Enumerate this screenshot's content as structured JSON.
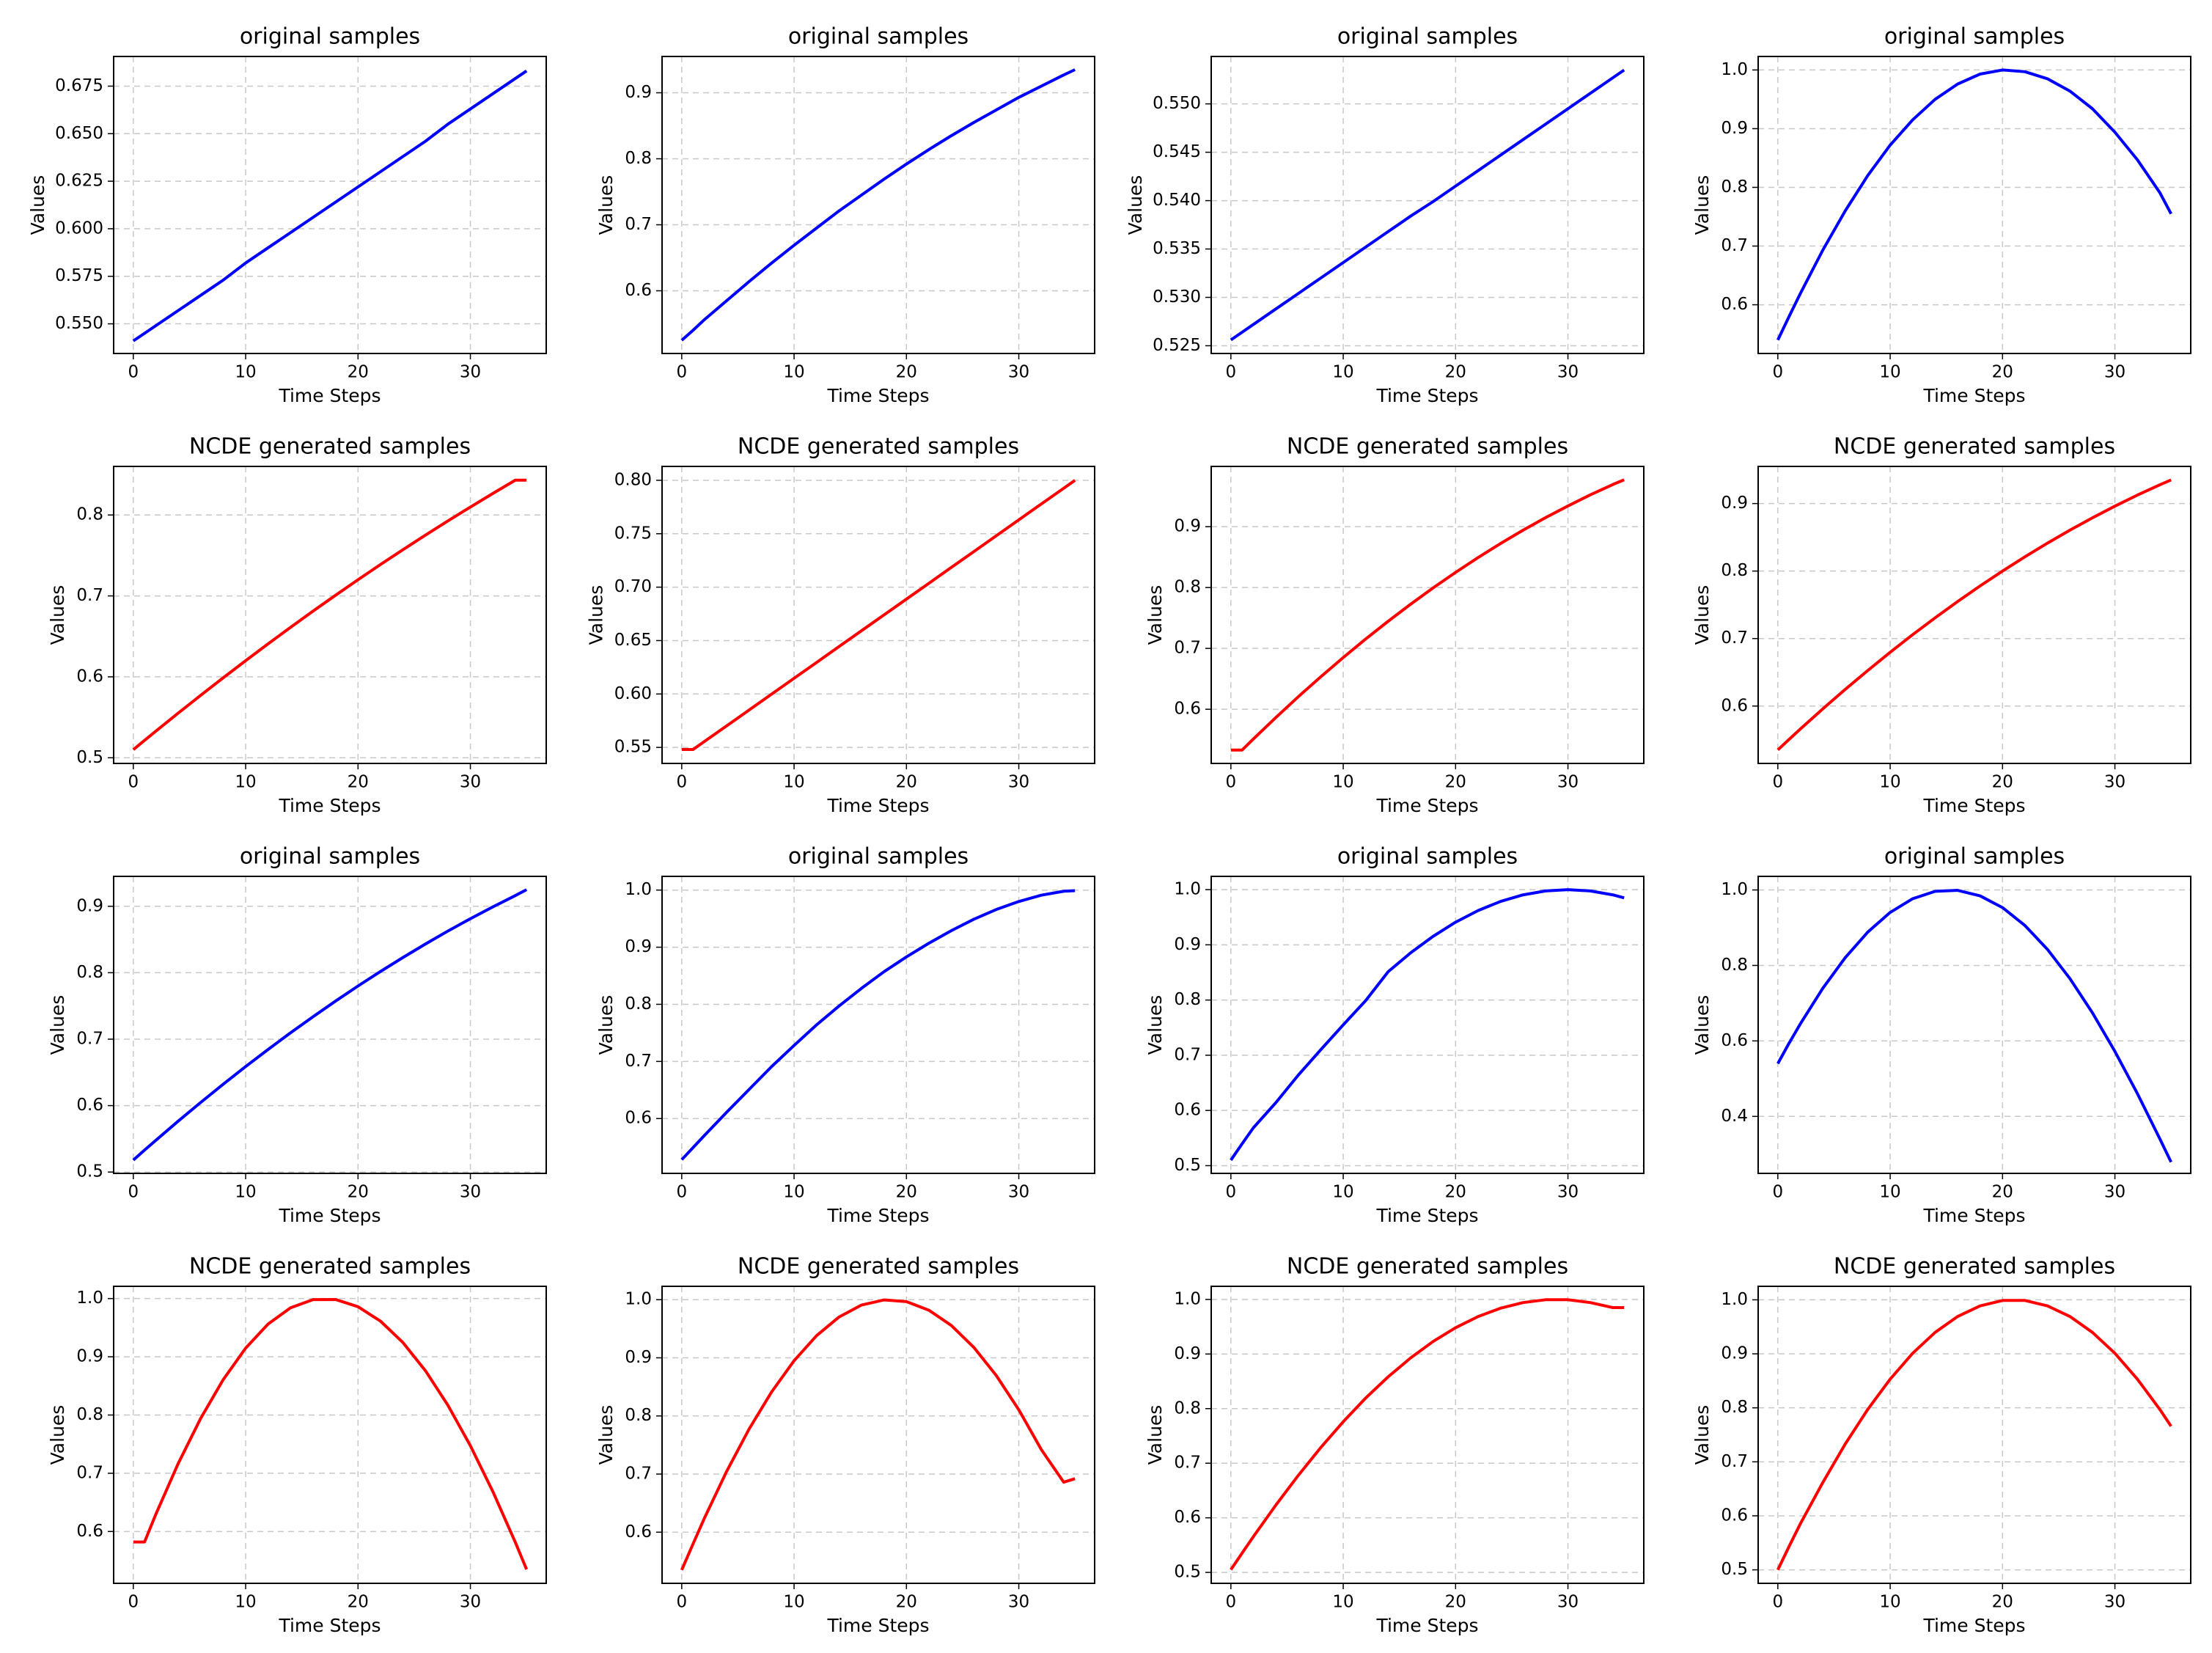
{
  "chart_data": [
    {
      "type": "line",
      "title": "original samples",
      "xlabel": "Time Steps",
      "ylabel": "Values",
      "color": "#0000ff",
      "grid": true,
      "x": [
        0,
        1,
        2,
        4,
        6,
        8,
        10,
        12,
        14,
        16,
        18,
        20,
        22,
        24,
        26,
        28,
        30,
        32,
        34,
        35
      ],
      "values": [
        0.541,
        0.545,
        0.549,
        0.557,
        0.565,
        0.573,
        0.582,
        0.59,
        0.598,
        0.606,
        0.614,
        0.622,
        0.63,
        0.638,
        0.646,
        0.655,
        0.663,
        0.671,
        0.679,
        0.683
      ],
      "xlim": [
        -1.75,
        36.75
      ],
      "xticks": [
        0,
        10,
        20,
        30
      ],
      "ylim": [
        0.5344,
        0.6906
      ],
      "yticks": [
        {
          "value": 0.55,
          "label": "0.550"
        },
        0.575,
        {
          "value": 0.6,
          "label": "0.600"
        },
        0.625,
        {
          "value": 0.65,
          "label": "0.650"
        },
        0.675
      ]
    },
    {
      "type": "line",
      "title": "original samples",
      "xlabel": "Time Steps",
      "ylabel": "Values",
      "color": "#0000ff",
      "grid": true,
      "x": [
        0,
        1,
        2,
        4,
        6,
        8,
        10,
        12,
        14,
        16,
        18,
        20,
        22,
        24,
        26,
        28,
        30,
        32,
        34,
        35
      ],
      "values": [
        0.525,
        0.54,
        0.556,
        0.585,
        0.614,
        0.642,
        0.669,
        0.695,
        0.721,
        0.745,
        0.769,
        0.792,
        0.814,
        0.835,
        0.855,
        0.874,
        0.893,
        0.91,
        0.927,
        0.935
      ],
      "xlim": [
        -1.75,
        36.75
      ],
      "xticks": [
        0,
        10,
        20,
        30
      ],
      "ylim": [
        0.505,
        0.955
      ],
      "yticks": [
        0.6,
        0.7,
        0.8,
        0.9
      ]
    },
    {
      "type": "line",
      "title": "original samples",
      "xlabel": "Time Steps",
      "ylabel": "Values",
      "color": "#0000ff",
      "grid": true,
      "x": [
        0,
        1,
        2,
        4,
        6,
        8,
        10,
        12,
        14,
        16,
        18,
        20,
        22,
        24,
        26,
        28,
        30,
        32,
        34,
        35
      ],
      "values": [
        0.5256,
        0.5264,
        0.5272,
        0.5288,
        0.5304,
        0.532,
        0.5336,
        0.5352,
        0.5368,
        0.5384,
        0.5399,
        0.5415,
        0.5431,
        0.5447,
        0.5463,
        0.5479,
        0.5495,
        0.5511,
        0.5527,
        0.5535
      ],
      "xlim": [
        -1.75,
        36.75
      ],
      "xticks": [
        0,
        10,
        20,
        30
      ],
      "ylim": [
        0.5242,
        0.5549
      ],
      "yticks": [
        0.525,
        {
          "value": 0.53,
          "label": "0.530"
        },
        0.535,
        {
          "value": 0.54,
          "label": "0.540"
        },
        0.545,
        {
          "value": 0.55,
          "label": "0.550"
        }
      ]
    },
    {
      "type": "line",
      "title": "original samples",
      "xlabel": "Time Steps",
      "ylabel": "Values",
      "color": "#0000ff",
      "grid": true,
      "x": [
        0,
        1,
        2,
        4,
        6,
        8,
        10,
        12,
        14,
        16,
        18,
        20,
        22,
        24,
        26,
        28,
        30,
        32,
        34,
        35
      ],
      "values": [
        0.54,
        0.58,
        0.619,
        0.693,
        0.76,
        0.82,
        0.872,
        0.915,
        0.95,
        0.976,
        0.993,
        1.0,
        0.997,
        0.985,
        0.964,
        0.934,
        0.894,
        0.847,
        0.791,
        0.755
      ],
      "xlim": [
        -1.75,
        36.75
      ],
      "xticks": [
        0,
        10,
        20,
        30
      ],
      "ylim": [
        0.517,
        1.023
      ],
      "yticks": [
        0.6,
        0.7,
        0.8,
        0.9,
        {
          "value": 1,
          "label": "1.0"
        }
      ]
    },
    {
      "type": "line",
      "title": "NCDE generated samples",
      "xlabel": "Time Steps",
      "ylabel": "Values",
      "color": "#ff0000",
      "grid": true,
      "x": [
        0,
        1,
        2,
        4,
        6,
        8,
        10,
        12,
        14,
        16,
        18,
        20,
        22,
        24,
        26,
        28,
        30,
        32,
        34,
        35
      ],
      "values": [
        0.51,
        0.5215,
        0.5328,
        0.5552,
        0.5772,
        0.5988,
        0.62,
        0.6408,
        0.6612,
        0.6812,
        0.7008,
        0.72,
        0.7388,
        0.7571,
        0.7751,
        0.7927,
        0.8098,
        0.8266,
        0.843,
        0.843
      ],
      "xlim": [
        -1.75,
        36.75
      ],
      "xticks": [
        0,
        10,
        20,
        30
      ],
      "ylim": [
        0.493,
        0.86
      ],
      "yticks": [
        0.5,
        0.6,
        0.7,
        0.8
      ]
    },
    {
      "type": "line",
      "title": "NCDE generated samples",
      "xlabel": "Time Steps",
      "ylabel": "Values",
      "color": "#ff0000",
      "grid": true,
      "x": [
        0,
        1,
        2,
        4,
        6,
        8,
        10,
        12,
        14,
        16,
        18,
        20,
        22,
        24,
        26,
        28,
        30,
        32,
        34,
        35
      ],
      "values": [
        0.548,
        0.548,
        0.5554,
        0.5702,
        0.585,
        0.5999,
        0.6147,
        0.6295,
        0.6444,
        0.6592,
        0.674,
        0.6888,
        0.7036,
        0.7185,
        0.7333,
        0.7481,
        0.763,
        0.7778,
        0.7926,
        0.8
      ],
      "xlim": [
        -1.75,
        36.75
      ],
      "xticks": [
        0,
        10,
        20,
        30
      ],
      "ylim": [
        0.535,
        0.813
      ],
      "yticks": [
        0.55,
        {
          "value": 0.6,
          "label": "0.60"
        },
        0.65,
        {
          "value": 0.7,
          "label": "0.70"
        },
        0.75,
        {
          "value": 0.8,
          "label": "0.80"
        }
      ]
    },
    {
      "type": "line",
      "title": "NCDE generated samples",
      "xlabel": "Time Steps",
      "ylabel": "Values",
      "color": "#ff0000",
      "grid": true,
      "x": [
        0,
        1,
        2,
        4,
        6,
        8,
        10,
        12,
        14,
        16,
        18,
        20,
        22,
        24,
        26,
        28,
        30,
        32,
        34,
        35
      ],
      "values": [
        0.533,
        0.533,
        0.5511,
        0.5864,
        0.6206,
        0.6534,
        0.685,
        0.7155,
        0.7446,
        0.7726,
        0.7994,
        0.8249,
        0.8492,
        0.8723,
        0.8942,
        0.9148,
        0.934,
        0.9524,
        0.9693,
        0.977
      ],
      "xlim": [
        -1.75,
        36.75
      ],
      "xticks": [
        0,
        10,
        20,
        30
      ],
      "ylim": [
        0.511,
        0.999
      ],
      "yticks": [
        0.6,
        0.7,
        0.8,
        0.9
      ]
    },
    {
      "type": "line",
      "title": "NCDE generated samples",
      "xlabel": "Time Steps",
      "ylabel": "Values",
      "color": "#ff0000",
      "grid": true,
      "x": [
        0,
        1,
        2,
        4,
        6,
        8,
        10,
        12,
        14,
        16,
        18,
        20,
        22,
        24,
        26,
        28,
        30,
        32,
        34,
        35
      ],
      "values": [
        0.535,
        0.5506,
        0.5659,
        0.5958,
        0.6247,
        0.6526,
        0.6797,
        0.7057,
        0.7307,
        0.7548,
        0.7779,
        0.8,
        0.8212,
        0.8414,
        0.8606,
        0.8788,
        0.8961,
        0.9125,
        0.9278,
        0.935
      ],
      "xlim": [
        -1.75,
        36.75
      ],
      "xticks": [
        0,
        10,
        20,
        30
      ],
      "ylim": [
        0.515,
        0.955
      ],
      "yticks": [
        0.6,
        0.7,
        0.8,
        0.9
      ]
    },
    {
      "type": "line",
      "title": "original samples",
      "xlabel": "Time Steps",
      "ylabel": "Values",
      "color": "#0000ff",
      "grid": true,
      "x": [
        0,
        1,
        2,
        4,
        6,
        8,
        10,
        12,
        14,
        16,
        18,
        20,
        22,
        24,
        26,
        28,
        30,
        32,
        34,
        35
      ],
      "values": [
        0.518,
        0.533,
        0.5477,
        0.5767,
        0.6048,
        0.6322,
        0.6588,
        0.6845,
        0.7096,
        0.7338,
        0.7573,
        0.78,
        0.8019,
        0.8229,
        0.8432,
        0.8627,
        0.8813,
        0.8991,
        0.9161,
        0.925
      ],
      "xlim": [
        -1.75,
        36.75
      ],
      "xticks": [
        0,
        10,
        20,
        30
      ],
      "ylim": [
        0.498,
        0.945
      ],
      "yticks": [
        0.5,
        0.6,
        0.7,
        0.8,
        0.9
      ]
    },
    {
      "type": "line",
      "title": "original samples",
      "xlabel": "Time Steps",
      "ylabel": "Values",
      "color": "#0000ff",
      "grid": true,
      "x": [
        0,
        1,
        2,
        4,
        6,
        8,
        10,
        12,
        14,
        16,
        18,
        20,
        22,
        24,
        26,
        28,
        30,
        32,
        34,
        35
      ],
      "values": [
        0.528,
        0.549,
        0.57,
        0.611,
        0.651,
        0.691,
        0.728,
        0.764,
        0.797,
        0.828,
        0.857,
        0.883,
        0.907,
        0.929,
        0.949,
        0.966,
        0.98,
        0.991,
        0.998,
        0.999
      ],
      "xlim": [
        -1.75,
        36.75
      ],
      "xticks": [
        0,
        10,
        20,
        30
      ],
      "ylim": [
        0.504,
        1.024
      ],
      "yticks": [
        0.6,
        0.7,
        0.8,
        0.9,
        {
          "value": 1,
          "label": "1.0"
        }
      ]
    },
    {
      "type": "line",
      "title": "original samples",
      "xlabel": "Time Steps",
      "ylabel": "Values",
      "color": "#0000ff",
      "grid": true,
      "x": [
        0,
        1,
        2,
        4,
        6,
        8,
        10,
        12,
        14,
        16,
        18,
        20,
        22,
        24,
        26,
        28,
        30,
        32,
        34,
        35
      ],
      "values": [
        0.51,
        0.5396,
        0.5685,
        0.614,
        0.664,
        0.71,
        0.755,
        0.799,
        0.8513,
        0.8855,
        0.9154,
        0.941,
        0.9621,
        0.9786,
        0.9905,
        0.9976,
        1.0,
        0.9976,
        0.9905,
        0.9851
      ],
      "xlim": [
        -1.75,
        36.75
      ],
      "xticks": [
        0,
        10,
        20,
        30
      ],
      "ylim": [
        0.486,
        1.024
      ],
      "yticks": [
        0.5,
        0.6,
        0.7,
        0.8,
        0.9,
        {
          "value": 1,
          "label": "1.0"
        }
      ]
    },
    {
      "type": "line",
      "title": "original samples",
      "xlabel": "Time Steps",
      "ylabel": "Values",
      "color": "#0000ff",
      "grid": true,
      "x": [
        0,
        1,
        2,
        4,
        6,
        8,
        10,
        12,
        14,
        16,
        18,
        20,
        22,
        24,
        26,
        28,
        30,
        32,
        34,
        35
      ],
      "values": [
        0.54,
        0.5939,
        0.645,
        0.7392,
        0.8207,
        0.8882,
        0.9405,
        0.9768,
        0.9964,
        0.999,
        0.9844,
        0.9532,
        0.9056,
        0.8425,
        0.765,
        0.6745,
        0.5722,
        0.4606,
        0.3405,
        0.279
      ],
      "xlim": [
        -1.75,
        36.75
      ],
      "xticks": [
        0,
        10,
        20,
        30
      ],
      "ylim": [
        0.249,
        1.036
      ],
      "yticks": [
        0.4,
        0.6,
        0.8,
        {
          "value": 1,
          "label": "1.0"
        }
      ]
    },
    {
      "type": "line",
      "title": "NCDE generated samples",
      "xlabel": "Time Steps",
      "ylabel": "Values",
      "color": "#ff0000",
      "grid": true,
      "x": [
        0,
        1,
        2,
        4,
        6,
        8,
        10,
        12,
        14,
        16,
        18,
        20,
        22,
        24,
        26,
        28,
        30,
        32,
        34,
        35
      ],
      "values": [
        0.582,
        0.582,
        0.6294,
        0.7169,
        0.7944,
        0.8607,
        0.9149,
        0.9563,
        0.9842,
        0.9982,
        0.9984,
        0.986,
        0.9612,
        0.9244,
        0.8761,
        0.8168,
        0.7473,
        0.6686,
        0.5815,
        0.535
      ],
      "xlim": [
        -1.75,
        36.75
      ],
      "xticks": [
        0,
        10,
        20,
        30
      ],
      "ylim": [
        0.511,
        1.021
      ],
      "yticks": [
        0.6,
        0.7,
        0.8,
        0.9,
        {
          "value": 1,
          "label": "1.0"
        }
      ]
    },
    {
      "type": "line",
      "title": "NCDE generated samples",
      "xlabel": "Time Steps",
      "ylabel": "Values",
      "color": "#ff0000",
      "grid": true,
      "x": [
        0,
        1,
        2,
        4,
        6,
        8,
        10,
        12,
        14,
        16,
        18,
        20,
        22,
        24,
        26,
        28,
        30,
        32,
        34,
        35
      ],
      "values": [
        0.535,
        0.5795,
        0.6233,
        0.7047,
        0.7776,
        0.8413,
        0.895,
        0.9381,
        0.9702,
        0.9908,
        0.9996,
        0.9967,
        0.9819,
        0.9556,
        0.9179,
        0.8694,
        0.8106,
        0.7423,
        0.686,
        0.692
      ],
      "xlim": [
        -1.75,
        36.75
      ],
      "xticks": [
        0,
        10,
        20,
        30
      ],
      "ylim": [
        0.512,
        1.023
      ],
      "yticks": [
        0.6,
        0.7,
        0.8,
        0.9,
        {
          "value": 1,
          "label": "1.0"
        }
      ]
    },
    {
      "type": "line",
      "title": "NCDE generated samples",
      "xlabel": "Time Steps",
      "ylabel": "Values",
      "color": "#ff0000",
      "grid": true,
      "x": [
        0,
        1,
        2,
        4,
        6,
        8,
        10,
        12,
        14,
        16,
        18,
        20,
        22,
        24,
        26,
        28,
        30,
        32,
        34,
        35
      ],
      "values": [
        0.505,
        0.5354,
        0.5654,
        0.6232,
        0.6777,
        0.7287,
        0.776,
        0.8194,
        0.8583,
        0.8929,
        0.923,
        0.9482,
        0.9686,
        0.9839,
        0.9942,
        0.9994,
        0.9994,
        0.9942,
        0.985,
        0.985
      ],
      "xlim": [
        -1.75,
        36.75
      ],
      "xticks": [
        0,
        10,
        20,
        30
      ],
      "ylim": [
        0.48,
        1.024
      ],
      "yticks": [
        0.5,
        0.6,
        0.7,
        0.8,
        0.9,
        {
          "value": 1,
          "label": "1.0"
        }
      ]
    },
    {
      "type": "line",
      "title": "NCDE generated samples",
      "xlabel": "Time Steps",
      "ylabel": "Values",
      "color": "#ff0000",
      "grid": true,
      "x": [
        0,
        1,
        2,
        4,
        6,
        8,
        10,
        12,
        14,
        16,
        18,
        20,
        22,
        24,
        26,
        28,
        30,
        32,
        34,
        35
      ],
      "values": [
        0.5,
        0.5433,
        0.5851,
        0.6616,
        0.733,
        0.797,
        0.8532,
        0.901,
        0.9397,
        0.9691,
        0.9888,
        0.9988,
        0.9988,
        0.9888,
        0.9691,
        0.9397,
        0.901,
        0.8532,
        0.797,
        0.766
      ],
      "xlim": [
        -1.75,
        36.75
      ],
      "xticks": [
        0,
        10,
        20,
        30
      ],
      "ylim": [
        0.475,
        1.025
      ],
      "yticks": [
        0.5,
        0.6,
        0.7,
        0.8,
        0.9,
        {
          "value": 1,
          "label": "1.0"
        }
      ]
    }
  ]
}
